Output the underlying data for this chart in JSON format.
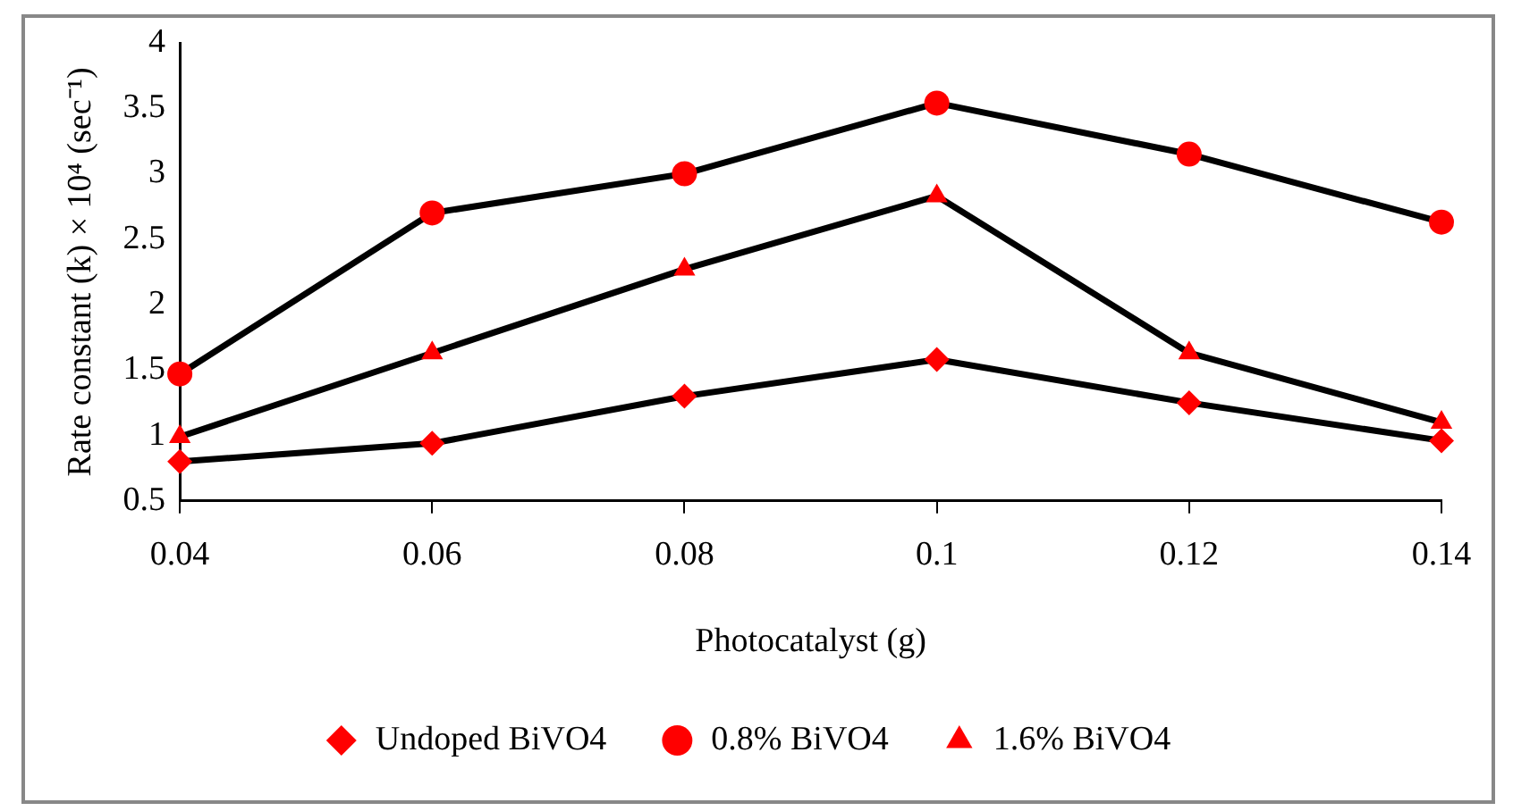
{
  "chart_data": {
    "type": "line",
    "xlabel": "Photocatalyst (g)",
    "ylabel": "Rate constant (k) × 10⁴ (sec⁻¹)",
    "x": [
      0.04,
      0.06,
      0.08,
      0.1,
      0.12,
      0.14
    ],
    "xlim": [
      0.04,
      0.14
    ],
    "xticks": [
      0.04,
      0.06,
      0.08,
      0.1,
      0.12,
      0.14
    ],
    "ylim": [
      0.5,
      4
    ],
    "yticks": [
      0.5,
      1,
      1.5,
      2,
      2.5,
      3,
      3.5,
      4
    ],
    "grid": false,
    "legend": "bottom",
    "line_style": "solid",
    "series": [
      {
        "name": "Undoped BiVO4",
        "color": "#ff0000",
        "marker": "diamond",
        "values": [
          0.8,
          0.94,
          1.3,
          1.58,
          1.25,
          0.96
        ]
      },
      {
        "name": "0.8% BiVO4",
        "color": "#ff0000",
        "marker": "circle",
        "values": [
          1.47,
          2.7,
          3.0,
          3.54,
          3.15,
          2.63
        ]
      },
      {
        "name": "1.6% BiVO4",
        "color": "#ff0000",
        "marker": "triangle",
        "values": [
          0.99,
          1.63,
          2.27,
          2.83,
          1.63,
          1.1
        ]
      }
    ]
  }
}
